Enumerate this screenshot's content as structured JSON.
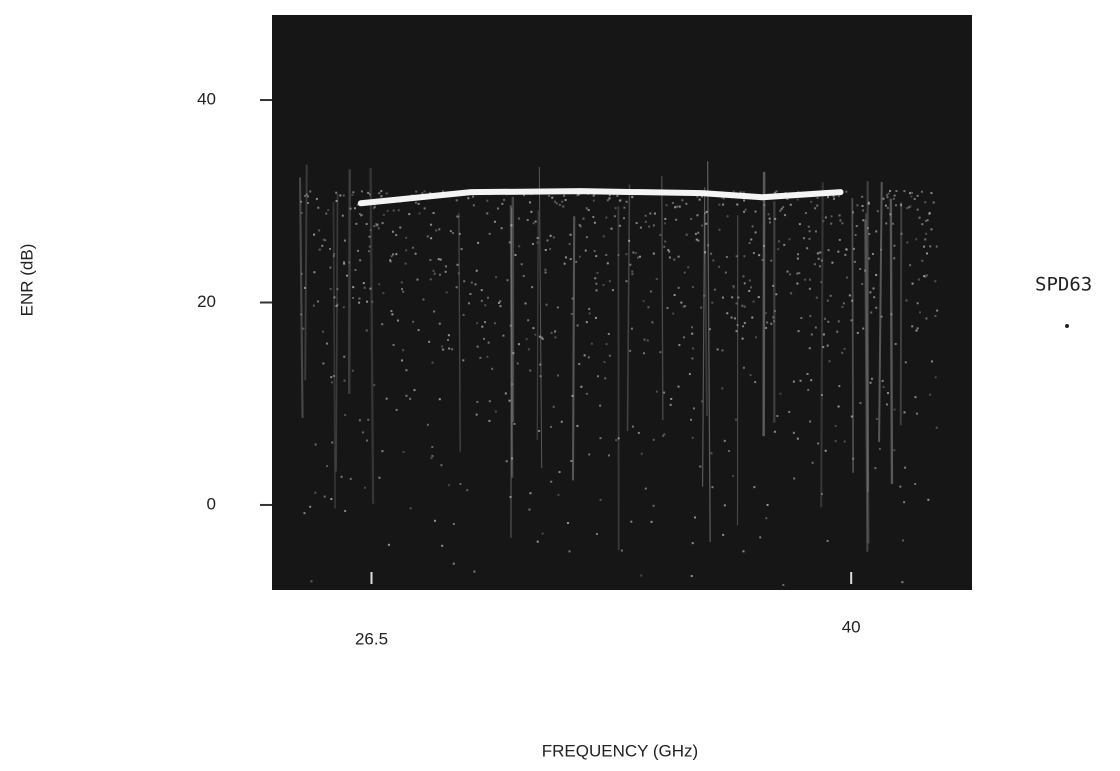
{
  "chart_data": {
    "type": "line",
    "x": [
      26.2,
      29.3,
      32.4,
      35.8,
      37.5,
      39.7
    ],
    "values": [
      29.8,
      30.9,
      31.0,
      30.8,
      30.4,
      30.9
    ],
    "color": "#f4f4f4",
    "xlabel": "FREQUENCY (GHz)",
    "ylabel": "ENR (dB)",
    "xlim": [
      23.7,
      43.4
    ],
    "ylim": [
      -8.4,
      48.4
    ],
    "xticks": [
      26.5,
      40
    ],
    "yticks": [
      0,
      20,
      40
    ],
    "annotation": "SPD63"
  }
}
